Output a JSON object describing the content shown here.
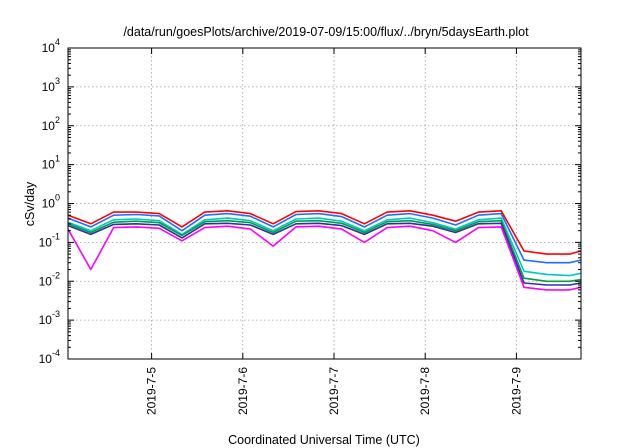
{
  "chart_data": {
    "type": "line",
    "title": "/data/run/goesPlots/archive/2019-07-09/15:00/flux/../bryn/5daysEarth.plot",
    "xlabel": "Coordinated Universal Time (UTC)",
    "ylabel": "cSv/day",
    "yscale": "log",
    "ylim": [
      0.0001,
      10000
    ],
    "xlim": [
      "2019-07-04 02:00",
      "2019-07-09 17:00"
    ],
    "grid": true,
    "x_ticks": [
      "2019-7-5",
      "2019-7-6",
      "2019-7-7",
      "2019-7-8",
      "2019-7-9"
    ],
    "y_ticks": [
      {
        "base": "10",
        "exp": "-4"
      },
      {
        "base": "10",
        "exp": "-3"
      },
      {
        "base": "10",
        "exp": "-2"
      },
      {
        "base": "10",
        "exp": "-1"
      },
      {
        "base": "10",
        "exp": "0"
      },
      {
        "base": "10",
        "exp": "1"
      },
      {
        "base": "10",
        "exp": "2"
      },
      {
        "base": "10",
        "exp": "3"
      },
      {
        "base": "10",
        "exp": "4"
      }
    ],
    "x": [
      "2019-07-04 02:00",
      "2019-07-04 08:00",
      "2019-07-04 14:00",
      "2019-07-04 20:00",
      "2019-07-05 02:00",
      "2019-07-05 08:00",
      "2019-07-05 14:00",
      "2019-07-05 20:00",
      "2019-07-06 02:00",
      "2019-07-06 08:00",
      "2019-07-06 14:00",
      "2019-07-06 20:00",
      "2019-07-07 02:00",
      "2019-07-07 08:00",
      "2019-07-07 14:00",
      "2019-07-07 20:00",
      "2019-07-08 02:00",
      "2019-07-08 08:00",
      "2019-07-08 14:00",
      "2019-07-08 20:00",
      "2019-07-09 02:00",
      "2019-07-09 08:00",
      "2019-07-09 14:00",
      "2019-07-09 17:00"
    ],
    "series": [
      {
        "color": "#ff0000",
        "values": [
          0.5,
          0.3,
          0.6,
          0.6,
          0.55,
          0.25,
          0.6,
          0.65,
          0.55,
          0.3,
          0.62,
          0.65,
          0.55,
          0.3,
          0.6,
          0.65,
          0.5,
          0.35,
          0.6,
          0.65,
          0.06,
          0.05,
          0.05,
          0.06
        ]
      },
      {
        "color": "#1f6fff",
        "values": [
          0.42,
          0.25,
          0.5,
          0.52,
          0.48,
          0.2,
          0.5,
          0.55,
          0.47,
          0.25,
          0.52,
          0.55,
          0.46,
          0.25,
          0.5,
          0.55,
          0.42,
          0.28,
          0.5,
          0.55,
          0.035,
          0.03,
          0.03,
          0.035
        ]
      },
      {
        "color": "#00c8c8",
        "values": [
          0.33,
          0.2,
          0.38,
          0.4,
          0.36,
          0.16,
          0.38,
          0.42,
          0.36,
          0.2,
          0.4,
          0.42,
          0.35,
          0.2,
          0.38,
          0.42,
          0.32,
          0.22,
          0.38,
          0.42,
          0.018,
          0.015,
          0.014,
          0.016
        ]
      },
      {
        "color": "#00a040",
        "values": [
          0.3,
          0.18,
          0.33,
          0.35,
          0.32,
          0.15,
          0.34,
          0.36,
          0.32,
          0.18,
          0.35,
          0.36,
          0.31,
          0.18,
          0.34,
          0.36,
          0.29,
          0.2,
          0.34,
          0.36,
          0.012,
          0.01,
          0.01,
          0.011
        ]
      },
      {
        "color": "#3030a0",
        "values": [
          0.27,
          0.16,
          0.29,
          0.3,
          0.28,
          0.13,
          0.3,
          0.31,
          0.28,
          0.16,
          0.3,
          0.31,
          0.27,
          0.16,
          0.3,
          0.31,
          0.26,
          0.18,
          0.3,
          0.31,
          0.009,
          0.008,
          0.008,
          0.009
        ]
      },
      {
        "color": "#ff00ff",
        "values": [
          0.22,
          0.02,
          0.24,
          0.25,
          0.23,
          0.11,
          0.24,
          0.26,
          0.22,
          0.08,
          0.25,
          0.26,
          0.22,
          0.1,
          0.24,
          0.26,
          0.2,
          0.1,
          0.24,
          0.25,
          0.007,
          0.006,
          0.006,
          0.007
        ]
      }
    ]
  }
}
